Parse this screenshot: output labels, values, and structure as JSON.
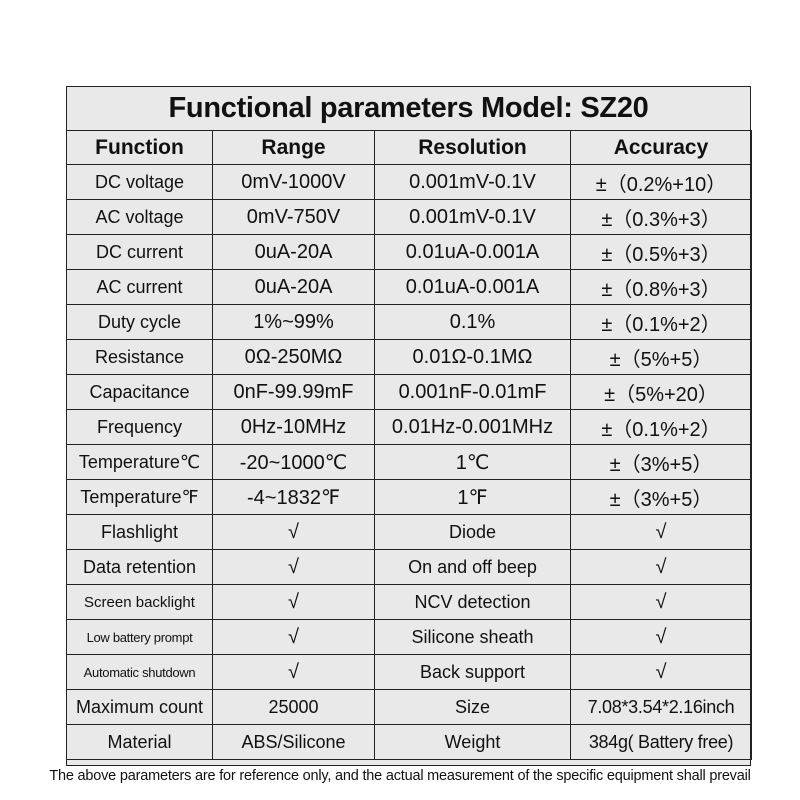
{
  "title": "Functional parameters Model: SZ20",
  "headers": [
    "Function",
    "Range",
    "Resolution",
    "Accuracy"
  ],
  "measurements": [
    {
      "function": "DC voltage",
      "range": "0mV-1000V",
      "resolution": "0.001mV-0.1V",
      "accuracy": "±（0.2%+10）"
    },
    {
      "function": "AC voltage",
      "range": "0mV-750V",
      "resolution": "0.001mV-0.1V",
      "accuracy": "±（0.3%+3）"
    },
    {
      "function": "DC current",
      "range": "0uA-20A",
      "resolution": "0.01uA-0.001A",
      "accuracy": "±（0.5%+3）"
    },
    {
      "function": "AC current",
      "range": "0uA-20A",
      "resolution": "0.01uA-0.001A",
      "accuracy": "±（0.8%+3）"
    },
    {
      "function": "Duty cycle",
      "range": "1%~99%",
      "resolution": "0.1%",
      "accuracy": "±（0.1%+2）"
    },
    {
      "function": "Resistance",
      "range": "0Ω-250MΩ",
      "resolution": "0.01Ω-0.1MΩ",
      "accuracy": "±（5%+5）"
    },
    {
      "function": "Capacitance",
      "range": "0nF-99.99mF",
      "resolution": "0.001nF-0.01mF",
      "accuracy": "±（5%+20）"
    },
    {
      "function": "Frequency",
      "range": "0Hz-10MHz",
      "resolution": "0.01Hz-0.001MHz",
      "accuracy": "±（0.1%+2）"
    },
    {
      "function": "Temperature℃",
      "range": "-20~1000℃",
      "resolution": "1℃",
      "accuracy": "±（3%+5）"
    },
    {
      "function": "Temperature℉",
      "range": "-4~1832℉",
      "resolution": "1℉",
      "accuracy": "±（3%+5）"
    }
  ],
  "features": [
    {
      "left_label": "Flashlight",
      "left_value": "√",
      "right_label": "Diode",
      "right_value": "√"
    },
    {
      "left_label": "Data retention",
      "left_value": "√",
      "right_label": "On and off beep",
      "right_value": "√"
    },
    {
      "left_label": "Screen backlight",
      "left_value": "√",
      "right_label": "NCV detection",
      "right_value": "√"
    },
    {
      "left_label": "Low battery prompt",
      "left_value": "√",
      "right_label": "Silicone sheath",
      "right_value": "√"
    },
    {
      "left_label": "Automatic shutdown",
      "left_value": "√",
      "right_label": "Back support",
      "right_value": "√"
    },
    {
      "left_label": "Maximum count",
      "left_value": "25000",
      "right_label": "Size",
      "right_value": "7.08*3.54*2.16inch"
    },
    {
      "left_label": "Material",
      "left_value": "ABS/Silicone",
      "right_label": "Weight",
      "right_value": "384g( Battery free)"
    }
  ],
  "footnote": "The above parameters are for reference only, and the actual measurement of the specific equipment shall prevail"
}
